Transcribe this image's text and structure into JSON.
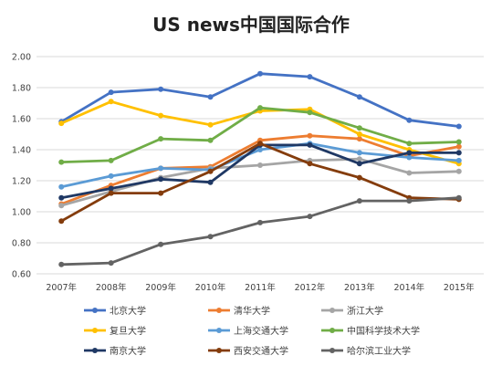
{
  "chart_data": {
    "type": "line",
    "title": "US news中国国际合作",
    "xlabel": "",
    "ylabel": "",
    "x": [
      "2007年",
      "2008年",
      "2009年",
      "2010年",
      "2011年",
      "2012年",
      "2013年",
      "2014年",
      "2015年"
    ],
    "ylim": [
      0.6,
      2.0
    ],
    "yticks": [
      "0.60",
      "0.80",
      "1.00",
      "1.20",
      "1.40",
      "1.60",
      "1.80",
      "2.00"
    ],
    "grid": true,
    "legend_position": "bottom",
    "series": [
      {
        "name": "北京大学",
        "color": "#4472c4",
        "values": [
          1.58,
          1.77,
          1.79,
          1.74,
          1.89,
          1.87,
          1.74,
          1.59,
          1.55
        ]
      },
      {
        "name": "清华大学",
        "color": "#ed7d31",
        "values": [
          1.05,
          1.17,
          1.28,
          1.29,
          1.46,
          1.49,
          1.47,
          1.36,
          1.42
        ]
      },
      {
        "name": "浙江大学",
        "color": "#a5a5a5",
        "values": [
          1.04,
          1.13,
          1.22,
          1.28,
          1.3,
          1.33,
          1.34,
          1.25,
          1.26
        ]
      },
      {
        "name": "复旦大学",
        "color": "#ffc000",
        "values": [
          1.57,
          1.71,
          1.62,
          1.56,
          1.65,
          1.66,
          1.5,
          1.4,
          1.31
        ]
      },
      {
        "name": "上海交通大学",
        "color": "#5b9bd5",
        "values": [
          1.16,
          1.23,
          1.28,
          1.27,
          1.4,
          1.44,
          1.38,
          1.35,
          1.33
        ]
      },
      {
        "name": "中国科学技术大学",
        "color": "#70ad47",
        "values": [
          1.32,
          1.33,
          1.47,
          1.46,
          1.67,
          1.64,
          1.54,
          1.44,
          1.45
        ]
      },
      {
        "name": "南京大学",
        "color": "#1f3864",
        "values": [
          1.09,
          1.15,
          1.21,
          1.19,
          1.43,
          1.43,
          1.31,
          1.38,
          1.38
        ]
      },
      {
        "name": "西安交通大学",
        "color": "#843c0c",
        "values": [
          0.94,
          1.12,
          1.12,
          1.26,
          1.44,
          1.31,
          1.22,
          1.09,
          1.08
        ]
      },
      {
        "name": "哈尔滨工业大学",
        "color": "#636363",
        "values": [
          0.66,
          0.67,
          0.79,
          0.84,
          0.93,
          0.97,
          1.07,
          1.07,
          1.09
        ]
      }
    ]
  }
}
